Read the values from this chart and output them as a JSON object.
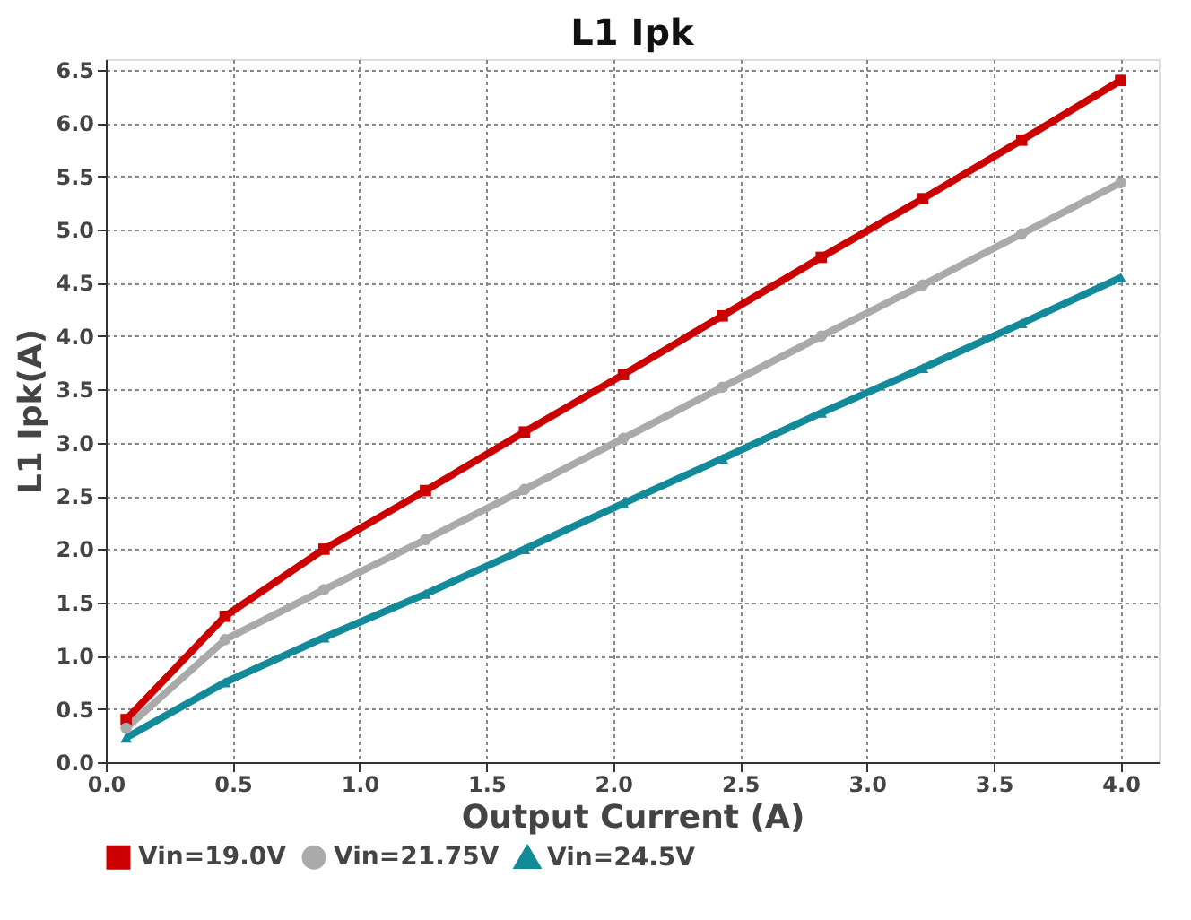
{
  "chart_data": {
    "type": "line",
    "title": "L1 Ipk",
    "xlabel": "Output Current (A)",
    "ylabel": "L1 Ipk(A)",
    "x": [
      0.08,
      0.47,
      0.86,
      1.26,
      1.65,
      2.04,
      2.43,
      2.82,
      3.22,
      3.61,
      4.0
    ],
    "series": [
      {
        "name": "Vin=19.0V",
        "color": "#cc0000",
        "marker": "square",
        "values": [
          0.4,
          1.37,
          2.0,
          2.55,
          3.1,
          3.64,
          4.19,
          4.74,
          5.29,
          5.84,
          6.4
        ]
      },
      {
        "name": "Vin=21.75V",
        "color": "#aaaaaa",
        "marker": "circle",
        "values": [
          0.32,
          1.15,
          1.62,
          2.09,
          2.56,
          3.04,
          3.52,
          4.0,
          4.48,
          4.96,
          5.44
        ]
      },
      {
        "name": "Vin=24.5V",
        "color": "#138a9a",
        "marker": "triangle",
        "values": [
          0.23,
          0.75,
          1.17,
          1.58,
          2.0,
          2.43,
          2.85,
          3.28,
          3.7,
          4.12,
          4.55
        ]
      }
    ],
    "xlim": [
      0,
      4.15
    ],
    "ylim": [
      0,
      6.6
    ],
    "xticks": [
      {
        "value": 0,
        "label": "0.0"
      },
      0.5,
      {
        "value": 1,
        "label": "1.0"
      },
      1.5,
      {
        "value": 2,
        "label": "2.0"
      },
      2.5,
      {
        "value": 3,
        "label": "3.0"
      },
      3.5,
      {
        "value": 4,
        "label": "4.0"
      }
    ],
    "yticks": [
      {
        "value": 0,
        "label": "0.0"
      },
      0.5,
      {
        "value": 1,
        "label": "1.0"
      },
      1.5,
      {
        "value": 2,
        "label": "2.0"
      },
      2.5,
      {
        "value": 3,
        "label": "3.0"
      },
      3.5,
      {
        "value": 4,
        "label": "4.0"
      },
      4.5,
      {
        "value": 5,
        "label": "5.0"
      },
      5.5,
      {
        "value": 6,
        "label": "6.0"
      },
      6.5
    ],
    "grid": true,
    "legend": "bottom",
    "line_style": "solid"
  }
}
